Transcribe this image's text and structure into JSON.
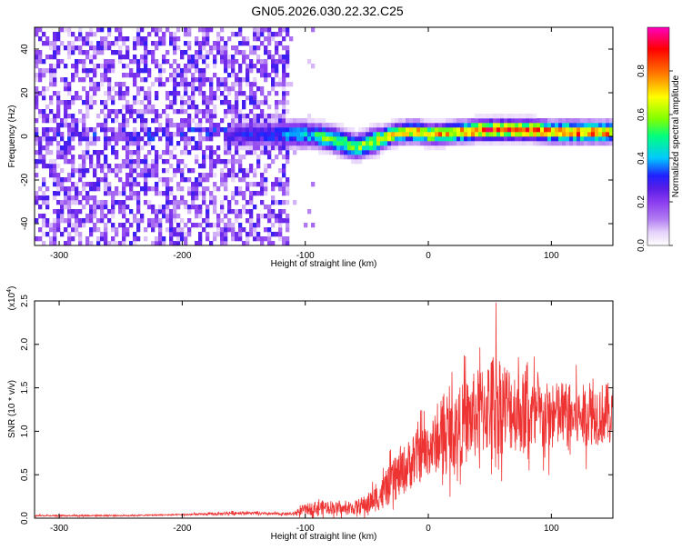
{
  "title": "GN05.2026.030.22.32.C25",
  "colors": {
    "snr_line": "#ee3333",
    "spectrogram_noise": "#8a3cf0",
    "colormap": [
      "#ffffff",
      "#e6d2fa",
      "#b27df2",
      "#8a3cf0",
      "#5a1ee6",
      "#2020ff",
      "#00c8ff",
      "#00ff80",
      "#80ff00",
      "#ffff00",
      "#ff8000",
      "#ff0000",
      "#ff00c0"
    ]
  },
  "chart_data": [
    {
      "type": "heatmap",
      "xlabel": "Height of straight line (km)",
      "ylabel": "Frequency (Hz)",
      "xlim": [
        -320,
        150
      ],
      "ylim": [
        -50,
        50
      ],
      "x_ticks": [
        -300,
        -200,
        -100,
        0,
        100
      ],
      "y_ticks": [
        -40,
        -20,
        0,
        20,
        40
      ],
      "colorbar": {
        "label": "Normalized spectral amplitude",
        "range": [
          0,
          1
        ],
        "ticks": [
          0.0,
          0.2,
          0.4,
          0.6,
          0.8
        ]
      },
      "noise_region_x": [
        -320,
        -115
      ],
      "ridge": {
        "x": [
          -150,
          -120,
          -100,
          -90,
          -80,
          -70,
          -60,
          -50,
          -40,
          -30,
          -20,
          -10,
          0,
          10,
          20,
          30,
          40,
          50,
          60,
          70,
          80,
          100,
          120,
          150
        ],
        "freq": [
          0,
          0,
          0,
          -1,
          -2,
          -4,
          -6,
          -4,
          -2,
          0,
          1,
          1,
          0,
          0,
          1,
          1,
          2,
          2,
          2,
          2,
          2,
          1,
          1,
          1
        ],
        "amplitude": [
          0.3,
          0.4,
          0.45,
          0.55,
          0.6,
          0.65,
          0.6,
          0.65,
          0.7,
          0.75,
          0.75,
          0.8,
          0.75,
          0.8,
          0.8,
          0.85,
          0.85,
          0.9,
          0.9,
          0.85,
          0.9,
          0.85,
          0.9,
          0.85
        ]
      }
    },
    {
      "type": "line",
      "xlabel": "Height of straight line (km)",
      "ylabel": "SNR (10 * v/v)",
      "y_scale_label": "(x10",
      "y_scale_exp": "4",
      "xlim": [
        -320,
        150
      ],
      "ylim": [
        0,
        2.5
      ],
      "x_ticks": [
        -300,
        -200,
        -100,
        0,
        100
      ],
      "y_ticks": [
        0.0,
        0.5,
        1.0,
        1.5,
        2.0,
        2.5
      ],
      "series": [
        {
          "x": [
            -320,
            -250,
            -200,
            -170,
            -160,
            -150,
            -130,
            -110,
            -100,
            -90,
            -80,
            -70,
            -60,
            -50,
            -40,
            -30,
            -20,
            -10,
            0,
            10,
            20,
            30,
            40,
            50,
            55,
            60,
            70,
            80,
            90,
            100,
            110,
            120,
            130,
            140,
            150
          ],
          "mean": [
            0.03,
            0.03,
            0.04,
            0.05,
            0.06,
            0.06,
            0.05,
            0.05,
            0.1,
            0.12,
            0.13,
            0.1,
            0.12,
            0.16,
            0.25,
            0.4,
            0.55,
            0.7,
            0.8,
            0.9,
            1.0,
            1.1,
            1.2,
            1.3,
            1.35,
            1.3,
            1.25,
            1.2,
            1.15,
            1.15,
            1.2,
            1.15,
            1.2,
            1.2,
            1.2
          ],
          "spread": [
            0.01,
            0.01,
            0.01,
            0.02,
            0.03,
            0.02,
            0.02,
            0.02,
            0.08,
            0.1,
            0.1,
            0.08,
            0.1,
            0.15,
            0.2,
            0.3,
            0.35,
            0.4,
            0.4,
            0.45,
            0.55,
            0.6,
            0.65,
            0.7,
            0.8,
            0.7,
            0.6,
            0.6,
            0.55,
            0.5,
            0.5,
            0.45,
            0.45,
            0.45,
            0.45
          ],
          "peak_x": 55,
          "peak_y": 2.48
        }
      ]
    }
  ]
}
